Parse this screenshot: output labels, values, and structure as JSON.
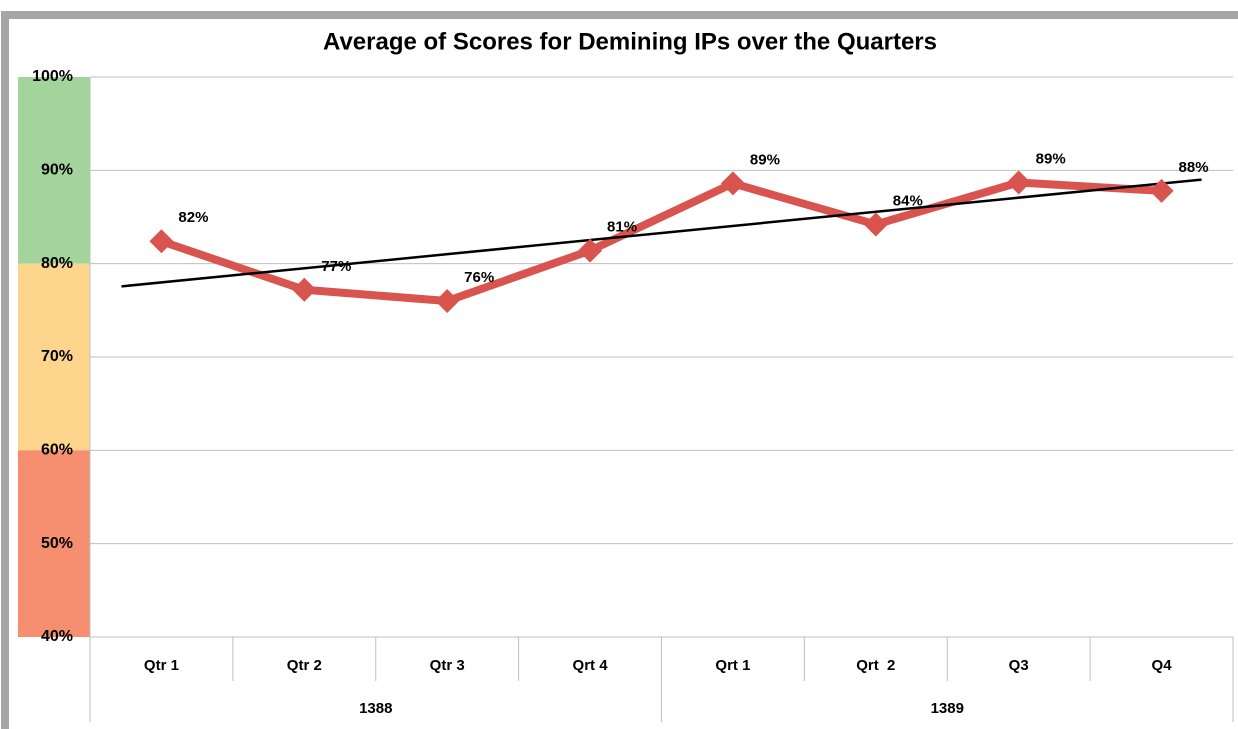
{
  "chart_data": {
    "type": "line",
    "title": "Average of Scores for Demining IPs over the Quarters",
    "categories": [
      "Qtr 1",
      "Qtr 2",
      "Qtr 3",
      "Qrt 4",
      "Qrt 1",
      "Qrt  2",
      "Q3",
      "Q4"
    ],
    "groups": [
      {
        "name": "1388",
        "span": 4
      },
      {
        "name": "1389",
        "span": 4
      }
    ],
    "series": [
      {
        "name": "Average of Scores",
        "color": "#d9534f",
        "values": [
          82.4,
          77.2,
          76.0,
          81.4,
          88.6,
          84.2,
          88.7,
          87.8
        ],
        "value_labels": [
          "82%",
          "77%",
          "76%",
          "81%",
          "89%",
          "84%",
          "89%",
          "88%"
        ]
      }
    ],
    "trendline": {
      "type": "linear",
      "color": "#000000"
    },
    "bands": [
      {
        "from": 80,
        "to": 100,
        "color": "#a3d49b"
      },
      {
        "from": 60,
        "to": 80,
        "color": "#fed58c"
      },
      {
        "from": 40,
        "to": 60,
        "color": "#f58f70"
      }
    ],
    "ylim": [
      40,
      100
    ],
    "yticks": [
      {
        "value": 40,
        "label": "40%"
      },
      {
        "value": 50,
        "label": "50%"
      },
      {
        "value": 60,
        "label": "60%"
      },
      {
        "value": 70,
        "label": "70%"
      },
      {
        "value": 80,
        "label": "80%"
      },
      {
        "value": 90,
        "label": "90%"
      },
      {
        "value": 100,
        "label": "100%"
      }
    ],
    "grid": true
  }
}
